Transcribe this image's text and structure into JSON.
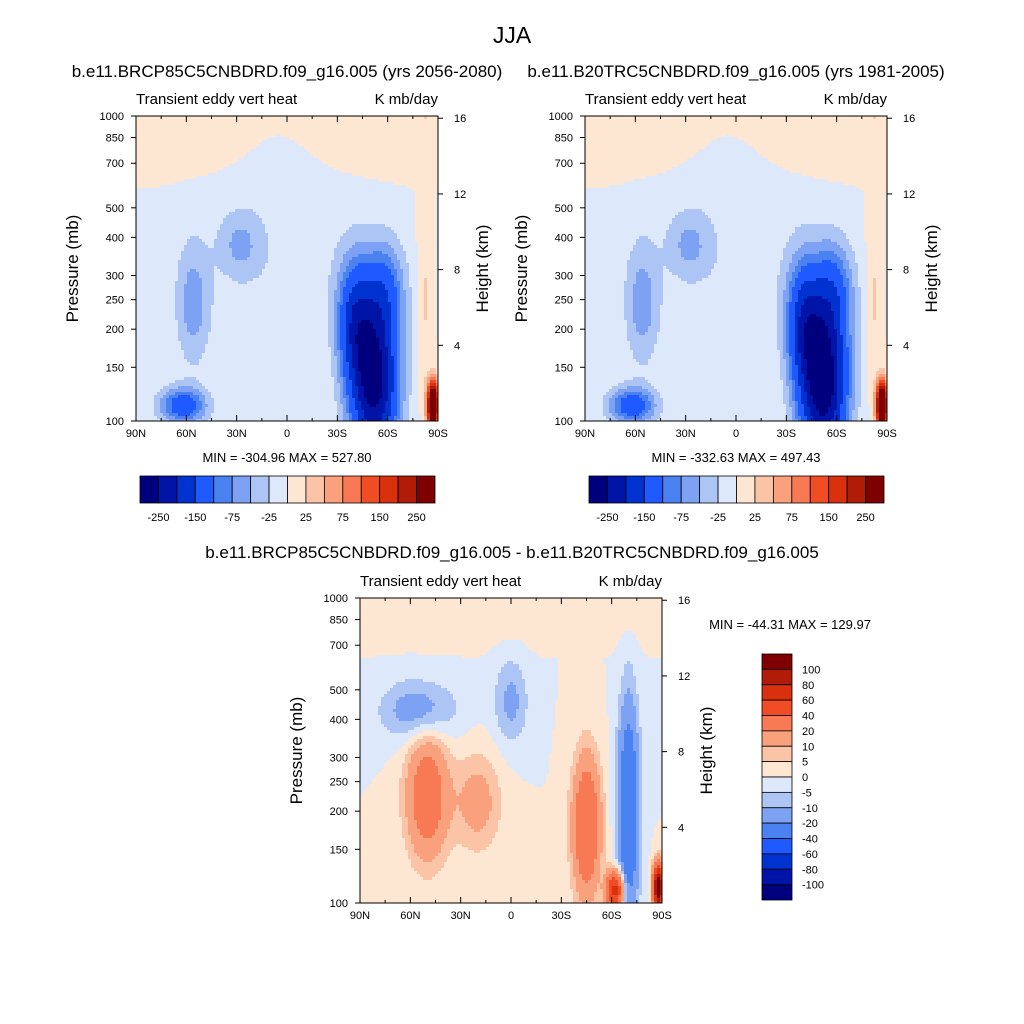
{
  "figure_title": "JJA",
  "chart_data": [
    {
      "type": "heatmap",
      "title": "b.e11.BRCP85C5CNBDRD.f09_g16.005 (yrs 2056-2080)",
      "left_label": "Transient eddy vert heat",
      "right_label": "K mb/day",
      "xlabel": "",
      "ylabel": "Pressure (mb)",
      "ylabel_right": "Height (km)",
      "x_ticks": [
        "90N",
        "60N",
        "30N",
        "0",
        "30S",
        "60S",
        "90S"
      ],
      "x_tick_values": [
        90,
        60,
        30,
        0,
        -30,
        -60,
        -90
      ],
      "y_ticks": [
        100,
        150,
        200,
        250,
        300,
        400,
        500,
        700,
        850,
        1000
      ],
      "y_scale": "log",
      "ylim": [
        1000,
        100
      ],
      "y2_ticks": [
        4,
        8,
        12,
        16
      ],
      "stats": "MIN = -304.96  MAX = 527.80",
      "colorbar": {
        "orientation": "horizontal",
        "labels": [
          "-250",
          "-150",
          "-75",
          "-25",
          "25",
          "75",
          "150",
          "250"
        ],
        "colors": [
          "#00007f",
          "#0015a8",
          "#0032d0",
          "#1e5aff",
          "#4a82f2",
          "#7da2f4",
          "#adc5f4",
          "#dde8fa",
          "#fee7d2",
          "#fcc4a7",
          "#f9a07c",
          "#f77a54",
          "#f04d25",
          "#d9300e",
          "#b01c08",
          "#7f0000"
        ]
      },
      "structures": [
        {
          "name": "southern-hemisphere-midlatitude-core",
          "lat_range": [
            -30,
            -75
          ],
          "p_range": [
            1000,
            300
          ],
          "sign": "negative",
          "peak_approx": -275
        },
        {
          "name": "northern-hemisphere-lower-core",
          "lat_range": [
            45,
            80
          ],
          "p_range": [
            1000,
            700
          ],
          "sign": "negative",
          "peak_approx": -130
        },
        {
          "name": "northern-hemisphere-upper-branch",
          "lat_range": [
            45,
            80
          ],
          "p_range": [
            700,
            250
          ],
          "sign": "negative",
          "peak_approx": -60
        },
        {
          "name": "stratospheric-positive-layer",
          "lat_range": [
            90,
            -30
          ],
          "p_range": [
            200,
            100
          ],
          "sign": "positive",
          "peak_approx": 10
        },
        {
          "name": "antarctic-surface-extreme",
          "lat_range": [
            -80,
            -90
          ],
          "p_range": [
            1000,
            800
          ],
          "sign": "positive",
          "peak_approx": 527.8
        }
      ]
    },
    {
      "type": "heatmap",
      "title": "b.e11.B20TRC5CNBDRD.f09_g16.005 (yrs 1981-2005)",
      "left_label": "Transient eddy vert heat",
      "right_label": "K mb/day",
      "xlabel": "",
      "ylabel": "Pressure (mb)",
      "ylabel_right": "Height (km)",
      "x_ticks": [
        "90N",
        "60N",
        "30N",
        "0",
        "30S",
        "60S",
        "90S"
      ],
      "x_tick_values": [
        90,
        60,
        30,
        0,
        -30,
        -60,
        -90
      ],
      "y_ticks": [
        100,
        150,
        200,
        250,
        300,
        400,
        500,
        700,
        850,
        1000
      ],
      "y_scale": "log",
      "ylim": [
        1000,
        100
      ],
      "y2_ticks": [
        4,
        8,
        12,
        16
      ],
      "stats": "MIN = -332.63  MAX = 497.43",
      "colorbar": {
        "orientation": "horizontal",
        "labels": [
          "-250",
          "-150",
          "-75",
          "-25",
          "25",
          "75",
          "150",
          "250"
        ],
        "colors": [
          "#00007f",
          "#0015a8",
          "#0032d0",
          "#1e5aff",
          "#4a82f2",
          "#7da2f4",
          "#adc5f4",
          "#dde8fa",
          "#fee7d2",
          "#fcc4a7",
          "#f9a07c",
          "#f77a54",
          "#f04d25",
          "#d9300e",
          "#b01c08",
          "#7f0000"
        ]
      },
      "structures": [
        {
          "name": "southern-hemisphere-midlatitude-core",
          "lat_range": [
            -25,
            -75
          ],
          "p_range": [
            1000,
            250
          ],
          "sign": "negative",
          "peak_approx": -300
        },
        {
          "name": "northern-hemisphere-lower-core",
          "lat_range": [
            45,
            80
          ],
          "p_range": [
            1000,
            700
          ],
          "sign": "negative",
          "peak_approx": -140
        },
        {
          "name": "northern-hemisphere-upper-branch",
          "lat_range": [
            40,
            80
          ],
          "p_range": [
            700,
            250
          ],
          "sign": "negative",
          "peak_approx": -60
        },
        {
          "name": "stratospheric-positive-layer",
          "lat_range": [
            90,
            -30
          ],
          "p_range": [
            200,
            100
          ],
          "sign": "positive",
          "peak_approx": 10
        },
        {
          "name": "antarctic-surface-extreme",
          "lat_range": [
            -80,
            -90
          ],
          "p_range": [
            1000,
            800
          ],
          "sign": "positive",
          "peak_approx": 497.43
        }
      ]
    },
    {
      "type": "heatmap",
      "title": "b.e11.BRCP85C5CNBDRD.f09_g16.005 - b.e11.B20TRC5CNBDRD.f09_g16.005",
      "left_label": "Transient eddy vert heat",
      "right_label": "K mb/day",
      "xlabel": "",
      "ylabel": "Pressure (mb)",
      "ylabel_right": "Height (km)",
      "x_ticks": [
        "90N",
        "60N",
        "30N",
        "0",
        "30S",
        "60S",
        "90S"
      ],
      "x_tick_values": [
        90,
        60,
        30,
        0,
        -30,
        -60,
        -90
      ],
      "y_ticks": [
        100,
        150,
        200,
        250,
        300,
        400,
        500,
        700,
        850,
        1000
      ],
      "y_scale": "log",
      "ylim": [
        1000,
        100
      ],
      "y2_ticks": [
        4,
        8,
        12,
        16
      ],
      "stats": "MIN = -44.31  MAX = 129.97",
      "colorbar": {
        "orientation": "vertical",
        "labels": [
          "100",
          "80",
          "60",
          "40",
          "20",
          "10",
          "5",
          "0",
          "-5",
          "-10",
          "-20",
          "-40",
          "-60",
          "-80",
          "-100"
        ],
        "colors": [
          "#7f0000",
          "#b01c08",
          "#d9300e",
          "#f04d25",
          "#f77a54",
          "#f9a07c",
          "#fcc4a7",
          "#fee7d2",
          "#dde8fa",
          "#adc5f4",
          "#7da2f4",
          "#4a82f2",
          "#1e5aff",
          "#0032d0",
          "#0015a8",
          "#00007f"
        ]
      },
      "structures": [
        {
          "name": "nh-midtroposphere-warming",
          "lat_range": [
            75,
            35
          ],
          "p_range": [
            850,
            300
          ],
          "sign": "positive",
          "peak_approx": 30
        },
        {
          "name": "nh-upper-decrease",
          "lat_range": [
            85,
            20
          ],
          "p_range": [
            400,
            180
          ],
          "sign": "negative",
          "peak_approx": -15
        },
        {
          "name": "subtropical-upper-decrease",
          "lat_range": [
            15,
            -15
          ],
          "p_range": [
            350,
            150
          ],
          "sign": "negative",
          "peak_approx": -12
        },
        {
          "name": "sh-midlatitude-increase",
          "lat_range": [
            -25,
            -60
          ],
          "p_range": [
            1000,
            350
          ],
          "sign": "positive",
          "peak_approx": 40
        },
        {
          "name": "sh-highlatitude-decrease",
          "lat_range": [
            -50,
            -80
          ],
          "p_range": [
            1000,
            250
          ],
          "sign": "negative",
          "peak_approx": -40
        },
        {
          "name": "antarctic-surface-increase",
          "lat_range": [
            -80,
            -90
          ],
          "p_range": [
            1000,
            800
          ],
          "sign": "positive",
          "peak_approx": 129.97
        },
        {
          "name": "stratosphere-positive",
          "lat_range": [
            90,
            -90
          ],
          "p_range": [
            180,
            100
          ],
          "sign": "positive",
          "peak_approx": 3
        }
      ]
    }
  ]
}
